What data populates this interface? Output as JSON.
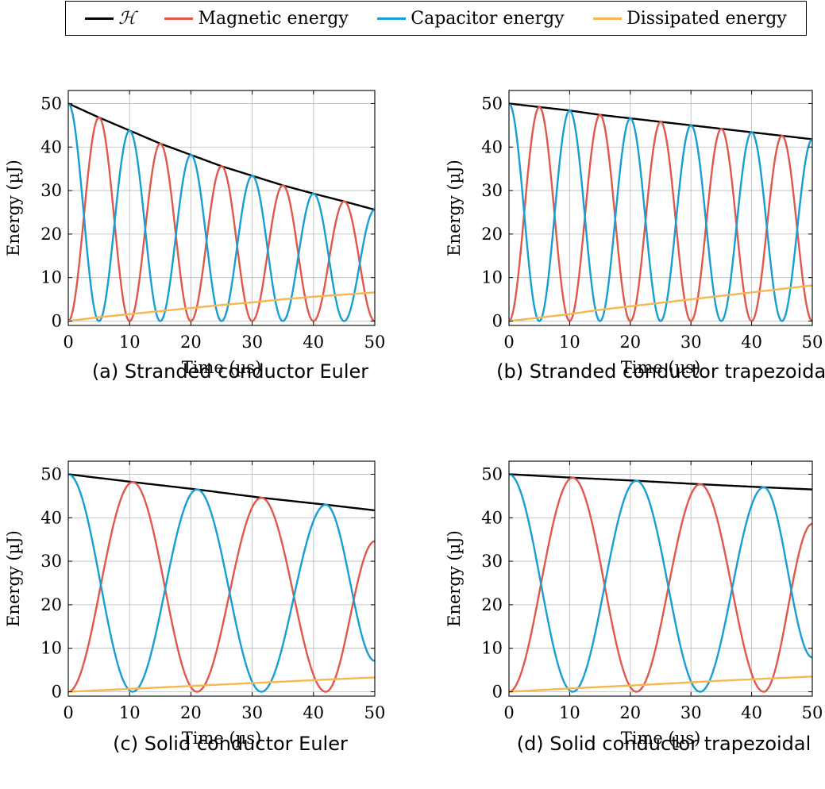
{
  "legend": {
    "items": [
      {
        "label": "ℋ",
        "color": "#000000"
      },
      {
        "label": "Magnetic energy",
        "color": "#e0574b"
      },
      {
        "label": "Capacitor energy",
        "color": "#169ed5"
      },
      {
        "label": "Dissipated energy",
        "color": "#f7b650"
      }
    ]
  },
  "chart_data": [
    {
      "type": "line",
      "caption": "(a) Stranded conductor Euler",
      "xlabel": "Time (µs)",
      "ylabel": "Energy (µJ)",
      "xlim": [
        0,
        50
      ],
      "ylim": [
        -1,
        53
      ],
      "xticks": [
        0,
        10,
        20,
        30,
        40,
        50
      ],
      "yticks": [
        0,
        10,
        20,
        30,
        40,
        50
      ],
      "grid": true,
      "series": [
        {
          "name": "ℋ",
          "color": "#000000",
          "x": [
            0,
            5,
            10,
            15,
            20,
            25,
            30,
            35,
            40,
            45,
            50
          ],
          "values": [
            50,
            46.8,
            43.8,
            40.8,
            38.2,
            35.6,
            33.4,
            31.2,
            29.3,
            27.5,
            25.6
          ]
        },
        {
          "name": "Magnetic energy",
          "color": "#e0574b",
          "x": [
            0,
            5,
            10,
            15,
            20,
            25,
            30,
            35,
            40,
            45,
            50
          ],
          "values": [
            0,
            46.8,
            0,
            40.8,
            0,
            35.6,
            0,
            31.2,
            0,
            27.5,
            0
          ]
        },
        {
          "name": "Capacitor energy",
          "color": "#169ed5",
          "x": [
            0,
            5,
            10,
            15,
            20,
            25,
            30,
            35,
            40,
            45,
            50
          ],
          "values": [
            50,
            0,
            43.8,
            0,
            38.2,
            0,
            33.4,
            0,
            29.3,
            0,
            25.6
          ]
        },
        {
          "name": "Dissipated energy",
          "color": "#f7b650",
          "x": [
            0,
            5,
            10,
            15,
            20,
            25,
            30,
            35,
            40,
            45,
            50
          ],
          "values": [
            0,
            0.9,
            1.6,
            2.3,
            3.0,
            3.7,
            4.3,
            5.0,
            5.6,
            6.1,
            6.6
          ]
        }
      ]
    },
    {
      "type": "line",
      "caption": "(b) Stranded conductor trapezoidal",
      "xlabel": "Time (µs)",
      "ylabel": "Energy (µJ)",
      "xlim": [
        0,
        50
      ],
      "ylim": [
        -1,
        53
      ],
      "xticks": [
        0,
        10,
        20,
        30,
        40,
        50
      ],
      "yticks": [
        0,
        10,
        20,
        30,
        40,
        50
      ],
      "grid": true,
      "series": [
        {
          "name": "ℋ",
          "color": "#000000",
          "x": [
            0,
            5,
            10,
            15,
            20,
            25,
            30,
            35,
            40,
            45,
            50
          ],
          "values": [
            50,
            49.2,
            48.4,
            47.4,
            46.6,
            45.8,
            45.0,
            44.2,
            43.4,
            42.6,
            41.8
          ]
        },
        {
          "name": "Magnetic energy",
          "color": "#e0574b",
          "x": [
            0,
            5,
            10,
            15,
            20,
            25,
            30,
            35,
            40,
            45,
            50
          ],
          "values": [
            0,
            49.2,
            0,
            47.4,
            0,
            45.8,
            0,
            44.2,
            0,
            42.6,
            0
          ]
        },
        {
          "name": "Capacitor energy",
          "color": "#169ed5",
          "x": [
            0,
            5,
            10,
            15,
            20,
            25,
            30,
            35,
            40,
            45,
            50
          ],
          "values": [
            50,
            0,
            48.4,
            0,
            46.6,
            0,
            45.0,
            0,
            43.4,
            0,
            41.8
          ]
        },
        {
          "name": "Dissipated energy",
          "color": "#f7b650",
          "x": [
            0,
            5,
            10,
            15,
            20,
            25,
            30,
            35,
            40,
            45,
            50
          ],
          "values": [
            0,
            0.8,
            1.6,
            2.6,
            3.4,
            4.2,
            5.0,
            5.8,
            6.6,
            7.4,
            8.2
          ]
        }
      ]
    },
    {
      "type": "line",
      "caption": "(c) Solid conductor Euler",
      "xlabel": "Time (µs)",
      "ylabel": "Energy (µJ)",
      "xlim": [
        0,
        50
      ],
      "ylim": [
        -1,
        53
      ],
      "xticks": [
        0,
        10,
        20,
        30,
        40,
        50
      ],
      "yticks": [
        0,
        10,
        20,
        30,
        40,
        50
      ],
      "grid": true,
      "series": [
        {
          "name": "ℋ",
          "color": "#000000",
          "x": [
            0,
            10.5,
            21,
            31.5,
            42,
            50
          ],
          "values": [
            50,
            48.2,
            46.5,
            44.6,
            43.0,
            41.7
          ]
        },
        {
          "name": "Magnetic energy",
          "color": "#e0574b",
          "x": [
            0,
            10.5,
            21,
            31.5,
            42,
            50
          ],
          "values": [
            0,
            48.2,
            0,
            44.6,
            0,
            34.6
          ]
        },
        {
          "name": "Capacitor energy",
          "color": "#169ed5",
          "x": [
            0,
            10.5,
            21,
            31.5,
            42,
            50
          ],
          "values": [
            50,
            0,
            46.5,
            0,
            43.0,
            7.1
          ]
        },
        {
          "name": "Dissipated energy",
          "color": "#f7b650",
          "x": [
            0,
            10.5,
            21,
            31.5,
            42,
            50
          ],
          "values": [
            0,
            0.7,
            1.4,
            2.1,
            2.8,
            3.3
          ]
        }
      ]
    },
    {
      "type": "line",
      "caption": "(d) Solid conductor trapezoidal",
      "xlabel": "Time (µs)",
      "ylabel": "Energy (µJ)",
      "xlim": [
        0,
        50
      ],
      "ylim": [
        -1,
        53
      ],
      "xticks": [
        0,
        10,
        20,
        30,
        40,
        50
      ],
      "yticks": [
        0,
        10,
        20,
        30,
        40,
        50
      ],
      "grid": true,
      "series": [
        {
          "name": "ℋ",
          "color": "#000000",
          "x": [
            0,
            10.5,
            21,
            31.5,
            42,
            50
          ],
          "values": [
            50,
            49.2,
            48.5,
            47.7,
            47.0,
            46.5
          ]
        },
        {
          "name": "Magnetic energy",
          "color": "#e0574b",
          "x": [
            0,
            10.5,
            21,
            31.5,
            42,
            50
          ],
          "values": [
            0,
            49.2,
            0,
            47.7,
            0,
            38.6
          ]
        },
        {
          "name": "Capacitor energy",
          "color": "#169ed5",
          "x": [
            0,
            10.5,
            21,
            31.5,
            42,
            50
          ],
          "values": [
            50,
            0,
            48.5,
            0,
            47.0,
            7.9
          ]
        },
        {
          "name": "Dissipated energy",
          "color": "#f7b650",
          "x": [
            0,
            10.5,
            21,
            31.5,
            42,
            50
          ],
          "values": [
            0,
            0.8,
            1.5,
            2.3,
            3.0,
            3.5
          ]
        }
      ]
    }
  ]
}
